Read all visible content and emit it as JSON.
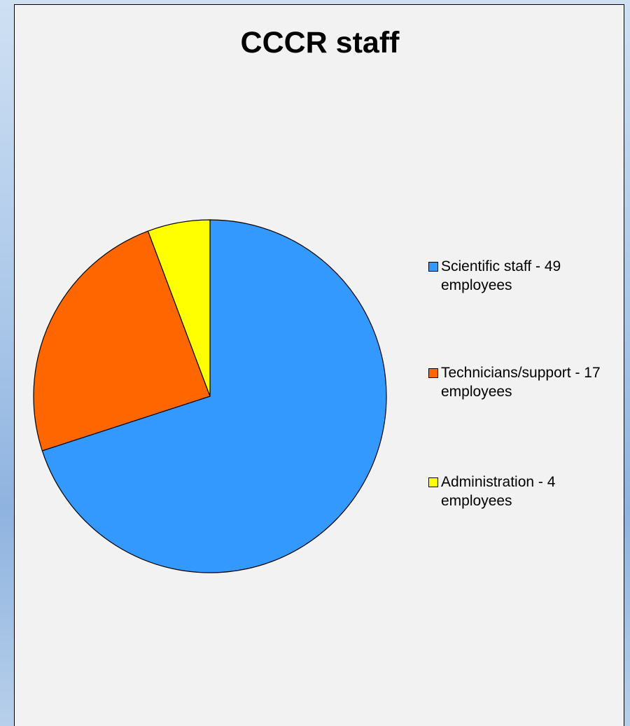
{
  "chart_data": {
    "type": "pie",
    "title": "CCCR staff",
    "start_angle_deg": 90,
    "direction": "clockwise",
    "slices": [
      {
        "label": "Scientific staff - 49 employees",
        "value": 49,
        "color": "#3399ff"
      },
      {
        "label": "Technicians/support - 17 employees",
        "value": 17,
        "color": "#ff6600"
      },
      {
        "label": "Administration - 4 employees",
        "value": 4,
        "color": "#ffff00"
      }
    ],
    "legend_position": "right"
  }
}
